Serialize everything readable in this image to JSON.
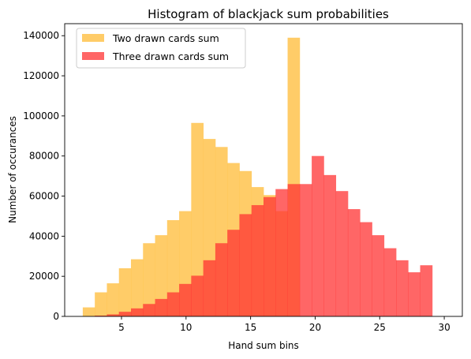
{
  "chart_data": {
    "type": "bar",
    "title": "Histogram of blackjack sum probabilities",
    "xlabel": "Hand sum bins",
    "ylabel": "Number of occurances",
    "xlim": [
      0.6,
      31.4
    ],
    "ylim": [
      0,
      146000
    ],
    "xticks": [
      5,
      10,
      15,
      20,
      25,
      30
    ],
    "yticks": [
      0,
      20000,
      40000,
      60000,
      80000,
      100000,
      120000,
      140000
    ],
    "legend_position": "top-left",
    "grid": false,
    "bin_edges": [
      2,
      2.9333,
      3.8667,
      4.8,
      5.7333,
      6.6667,
      7.6,
      8.5333,
      9.4667,
      10.4,
      11.3333,
      12.2667,
      13.2,
      14.1333,
      15.0667,
      16,
      16.9333,
      17.8667,
      18.8,
      19.7333,
      20.6667,
      21.6,
      22.5333,
      23.4667,
      24.4,
      25.3333,
      26.2667,
      27.2,
      28.1333,
      29.0667,
      30
    ],
    "series": [
      {
        "name": "Two drawn cards sum",
        "color": "#ffc34d",
        "opacity": 0.85,
        "values": [
          4500,
          12000,
          16500,
          24000,
          28500,
          36500,
          40500,
          48000,
          52500,
          96500,
          88500,
          84500,
          76500,
          72500,
          64500,
          60500,
          52500,
          139000,
          0,
          0,
          0,
          0,
          0,
          0,
          0,
          0,
          0,
          0,
          0,
          0
        ]
      },
      {
        "name": "Three drawn cards sum",
        "color": "#ff3333",
        "opacity": 0.75,
        "values": [
          0,
          400,
          1000,
          2300,
          4000,
          6200,
          8700,
          12000,
          16200,
          20300,
          28000,
          36500,
          43200,
          51000,
          55500,
          59500,
          63500,
          66000,
          66000,
          80000,
          70500,
          62500,
          53500,
          47000,
          40500,
          34000,
          28000,
          22000,
          25500,
          0
        ]
      }
    ]
  }
}
